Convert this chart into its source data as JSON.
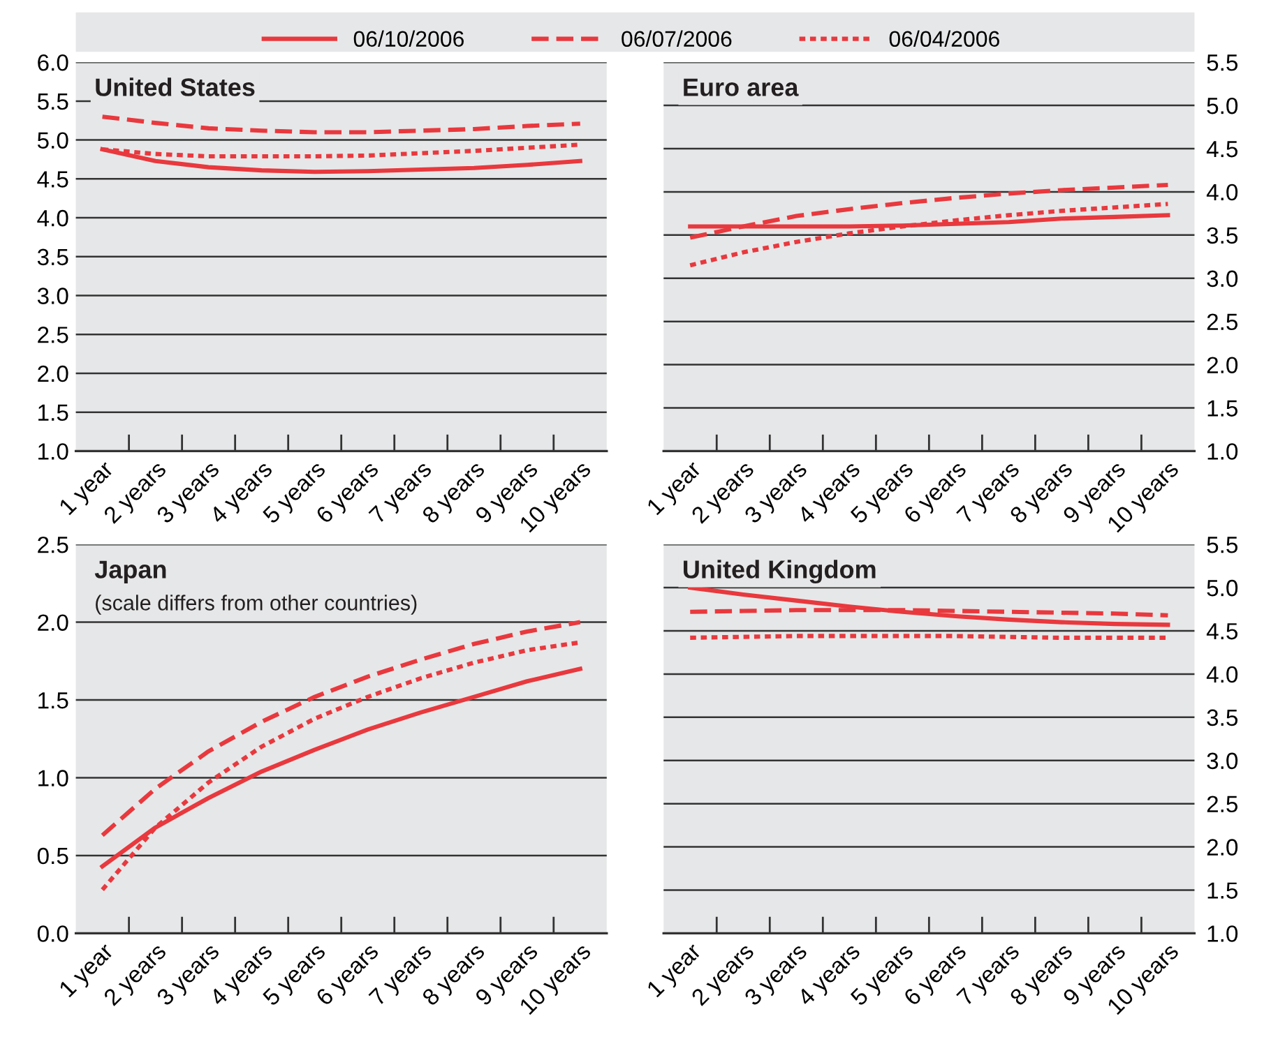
{
  "chart_data": [
    {
      "type": "line",
      "title": "United States",
      "legend": "top",
      "grid": "y",
      "categories": [
        "1 year",
        "2 years",
        "3 years",
        "4 years",
        "5 years",
        "6 years",
        "7 years",
        "8 years",
        "9 years",
        "10 years"
      ],
      "ylim": [
        1.0,
        6.0
      ],
      "yticks": [
        {
          "value": 1.0,
          "label": "1.0"
        },
        {
          "value": 1.5,
          "label": "1.5"
        },
        {
          "value": 2.0,
          "label": "2.0"
        },
        {
          "value": 2.5,
          "label": "2.5"
        },
        {
          "value": 3.0,
          "label": "3.0"
        },
        {
          "value": 3.5,
          "label": "3.5"
        },
        {
          "value": 4.0,
          "label": "4.0"
        },
        {
          "value": 4.5,
          "label": "4.5"
        },
        {
          "value": 5.0,
          "label": "5.0"
        },
        {
          "value": 5.5,
          "label": "5.5"
        },
        {
          "value": 6.0,
          "label": "6.0"
        }
      ],
      "series": [
        {
          "name": "06/10/2006",
          "color": "#e8393e",
          "line_style": "solid",
          "values": [
            4.88,
            4.73,
            4.65,
            4.61,
            4.59,
            4.6,
            4.62,
            4.64,
            4.68,
            4.73
          ]
        },
        {
          "name": "06/07/2006",
          "color": "#e8393e",
          "line_style": "dashed",
          "values": [
            5.3,
            5.22,
            5.15,
            5.12,
            5.1,
            5.1,
            5.12,
            5.14,
            5.18,
            5.21
          ]
        },
        {
          "name": "06/04/2006",
          "color": "#e8393e",
          "line_style": "dotted",
          "values": [
            4.88,
            4.82,
            4.79,
            4.79,
            4.79,
            4.8,
            4.83,
            4.86,
            4.9,
            4.94
          ]
        }
      ]
    },
    {
      "type": "line",
      "title": "Euro area",
      "grid": "y",
      "categories": [
        "1 year",
        "2 years",
        "3 years",
        "4 years",
        "5 years",
        "6 years",
        "7 years",
        "8 years",
        "9 years",
        "10 years"
      ],
      "ylim": [
        1.0,
        5.5
      ],
      "yticks": [
        {
          "value": 1.0,
          "label": "1.0"
        },
        {
          "value": 1.5,
          "label": "1.5"
        },
        {
          "value": 2.0,
          "label": "2.0"
        },
        {
          "value": 2.5,
          "label": "2.5"
        },
        {
          "value": 3.0,
          "label": "3.0"
        },
        {
          "value": 3.5,
          "label": "3.5"
        },
        {
          "value": 4.0,
          "label": "4.0"
        },
        {
          "value": 4.5,
          "label": "4.5"
        },
        {
          "value": 5.0,
          "label": "5.0"
        },
        {
          "value": 5.5,
          "label": "5.5"
        }
      ],
      "series": [
        {
          "color": "#e8393e",
          "line_style": "solid",
          "values": [
            3.6,
            3.6,
            3.6,
            3.6,
            3.61,
            3.63,
            3.65,
            3.69,
            3.71,
            3.73
          ]
        },
        {
          "color": "#e8393e",
          "line_style": "dashed",
          "values": [
            3.47,
            3.6,
            3.72,
            3.8,
            3.87,
            3.93,
            3.98,
            4.02,
            4.05,
            4.08
          ]
        },
        {
          "color": "#e8393e",
          "line_style": "dotted",
          "values": [
            3.15,
            3.3,
            3.42,
            3.52,
            3.6,
            3.67,
            3.73,
            3.78,
            3.82,
            3.86
          ]
        }
      ]
    },
    {
      "type": "line",
      "title": "Japan",
      "subtitle": "(scale differs from other countries)",
      "grid": "y",
      "categories": [
        "1 year",
        "2 years",
        "3 years",
        "4 years",
        "5 years",
        "6 years",
        "7 years",
        "8 years",
        "9 years",
        "10 years"
      ],
      "ylim": [
        0.0,
        2.5
      ],
      "yticks": [
        {
          "value": 0.0,
          "label": "0.0"
        },
        {
          "value": 0.5,
          "label": "0.5"
        },
        {
          "value": 1.0,
          "label": "1.0"
        },
        {
          "value": 1.5,
          "label": "1.5"
        },
        {
          "value": 2.0,
          "label": "2.0"
        },
        {
          "value": 2.5,
          "label": "2.5"
        }
      ],
      "series": [
        {
          "color": "#e8393e",
          "line_style": "solid",
          "values": [
            0.43,
            0.68,
            0.87,
            1.04,
            1.18,
            1.31,
            1.42,
            1.52,
            1.62,
            1.7
          ]
        },
        {
          "color": "#e8393e",
          "line_style": "dashed",
          "values": [
            0.63,
            0.93,
            1.17,
            1.36,
            1.52,
            1.65,
            1.76,
            1.86,
            1.94,
            2.0
          ]
        },
        {
          "color": "#e8393e",
          "line_style": "dotted",
          "values": [
            0.28,
            0.68,
            0.97,
            1.2,
            1.38,
            1.52,
            1.64,
            1.74,
            1.82,
            1.87
          ]
        }
      ]
    },
    {
      "type": "line",
      "title": "United Kingdom",
      "grid": "y",
      "categories": [
        "1 year",
        "2 years",
        "3 years",
        "4 years",
        "5 years",
        "6 years",
        "7 years",
        "8 years",
        "9 years",
        "10 years"
      ],
      "ylim": [
        1.0,
        5.5
      ],
      "yticks": [
        {
          "value": 1.0,
          "label": "1.0"
        },
        {
          "value": 1.5,
          "label": "1.5"
        },
        {
          "value": 2.0,
          "label": "2.0"
        },
        {
          "value": 2.5,
          "label": "2.5"
        },
        {
          "value": 3.0,
          "label": "3.0"
        },
        {
          "value": 3.5,
          "label": "3.5"
        },
        {
          "value": 4.0,
          "label": "4.0"
        },
        {
          "value": 4.5,
          "label": "4.5"
        },
        {
          "value": 5.0,
          "label": "5.0"
        },
        {
          "value": 5.5,
          "label": "5.5"
        }
      ],
      "series": [
        {
          "color": "#e8393e",
          "line_style": "solid",
          "values": [
            5.0,
            4.92,
            4.85,
            4.78,
            4.72,
            4.67,
            4.63,
            4.6,
            4.58,
            4.57
          ]
        },
        {
          "color": "#e8393e",
          "line_style": "dashed",
          "values": [
            4.72,
            4.73,
            4.74,
            4.74,
            4.74,
            4.73,
            4.72,
            4.71,
            4.7,
            4.68
          ]
        },
        {
          "color": "#e8393e",
          "line_style": "dotted",
          "values": [
            4.42,
            4.43,
            4.44,
            4.44,
            4.44,
            4.44,
            4.43,
            4.42,
            4.42,
            4.42
          ]
        }
      ]
    }
  ]
}
